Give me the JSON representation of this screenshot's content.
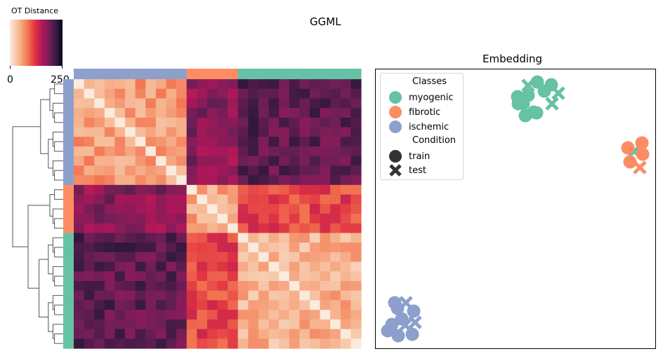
{
  "figure": {
    "title": "GGML"
  },
  "colorbar": {
    "label": "OT Distance",
    "ticks": [
      "0",
      "250"
    ],
    "range": [
      0,
      250
    ]
  },
  "embedding": {
    "title": "Embedding",
    "legend": {
      "classes_title": "Classes",
      "classes": [
        {
          "name": "myogenic",
          "color": "#66c2a5"
        },
        {
          "name": "fibrotic",
          "color": "#fc8d62"
        },
        {
          "name": "ischemic",
          "color": "#8da0cb"
        }
      ],
      "condition_title": "Condition",
      "conditions": [
        {
          "name": "train",
          "marker": "circle"
        },
        {
          "name": "test",
          "marker": "x"
        }
      ]
    }
  },
  "chart_data": [
    {
      "type": "heatmap",
      "title": "GGML",
      "colorbar_label": "OT Distance",
      "value_range": [
        0,
        250
      ],
      "row_groups": [
        {
          "class": "ischemic",
          "rows": 11
        },
        {
          "class": "fibrotic",
          "rows": 5
        },
        {
          "class": "myogenic",
          "rows": 12
        }
      ],
      "block_mean_distance": {
        "ischemic-ischemic": 60,
        "fibrotic-fibrotic": 55,
        "myogenic-myogenic": 45,
        "ischemic-fibrotic": 175,
        "ischemic-myogenic": 200,
        "fibrotic-myogenic": 110
      }
    },
    {
      "type": "scatter",
      "title": "Embedding",
      "axes_ticks": "none",
      "series": [
        {
          "name": "myogenic train",
          "points": [
            [
              737,
              138
            ],
            [
              745,
              148
            ],
            [
              752,
              136
            ],
            [
              765,
              117
            ],
            [
              775,
              130
            ],
            [
              785,
              121
            ],
            [
              760,
              160
            ],
            [
              748,
              165
            ],
            [
              764,
              161
            ],
            [
              738,
              148
            ]
          ]
        },
        {
          "name": "myogenic test",
          "points": [
            [
              752,
              122
            ],
            [
              795,
              133
            ],
            [
              786,
              148
            ],
            [
              903,
              216
            ]
          ]
        },
        {
          "name": "fibrotic train",
          "points": [
            [
              894,
              211
            ],
            [
              914,
              204
            ],
            [
              915,
              220
            ],
            [
              897,
              231
            ]
          ]
        },
        {
          "name": "fibrotic test",
          "points": [
            [
              911,
              239
            ]
          ]
        },
        {
          "name": "ischemic train",
          "points": [
            [
              562,
              432
            ],
            [
              566,
              440
            ],
            [
              589,
              444
            ],
            [
              572,
              455
            ],
            [
              558,
              463
            ],
            [
              552,
              472
            ],
            [
              567,
              479
            ],
            [
              587,
              477
            ]
          ]
        },
        {
          "name": "ischemic test",
          "points": [
            [
              578,
              432
            ],
            [
              591,
              460
            ],
            [
              577,
              464
            ]
          ]
        }
      ]
    }
  ]
}
